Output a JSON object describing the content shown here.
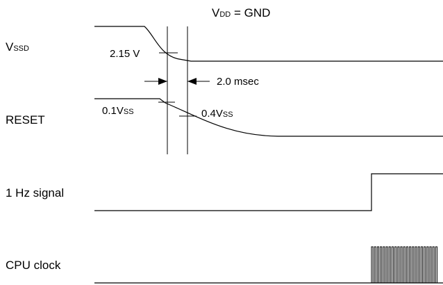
{
  "title": {
    "main": "V",
    "sub": "DD",
    "rest": " = GND"
  },
  "signals": {
    "vssd": {
      "main": "V",
      "sub": "SSD"
    },
    "reset": "RESET",
    "one_hz": "1 Hz signal",
    "cpu_clock": "CPU clock"
  },
  "annotations": {
    "threshold_vssd": "2.15 V",
    "delay": "2.0 msec",
    "reset_low": {
      "main": "0.1V",
      "sub": "SS"
    },
    "reset_high": {
      "main": "0.4V",
      "sub": "SS"
    }
  }
}
